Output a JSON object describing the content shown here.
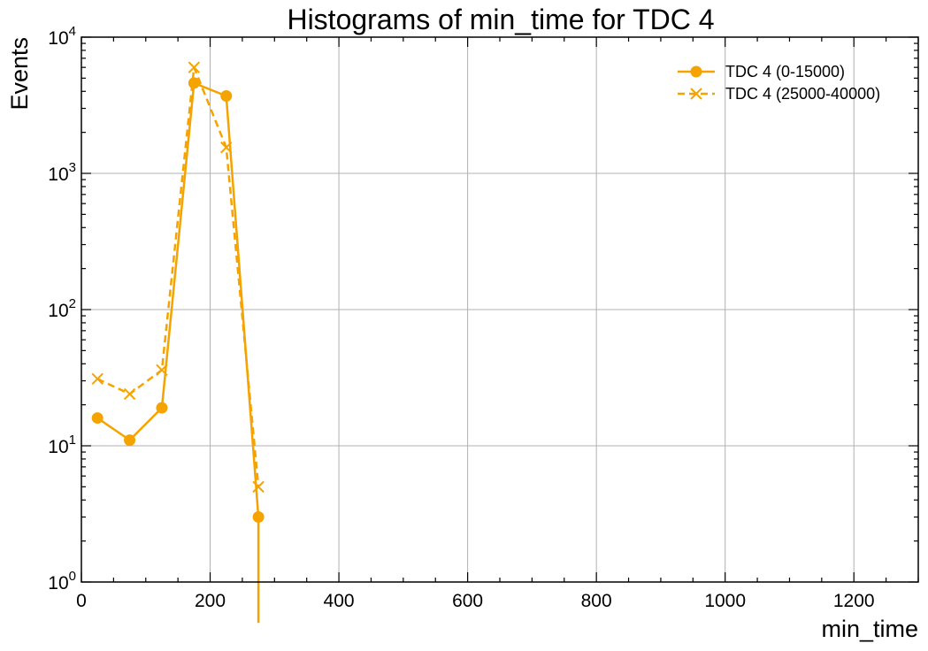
{
  "chart_data": {
    "type": "line",
    "title": "Histograms of min_time for TDC 4",
    "xlabel": "min_time",
    "ylabel": "Events",
    "xlim": [
      0,
      1300
    ],
    "ylim": [
      1,
      10000
    ],
    "yscale": "log",
    "grid": true,
    "legend_position": "top-right",
    "x_ticks": [
      {
        "value": 0,
        "label": "0"
      },
      {
        "value": 200,
        "label": "200"
      },
      {
        "value": 400,
        "label": "400"
      },
      {
        "value": 600,
        "label": "600"
      },
      {
        "value": 800,
        "label": "800"
      },
      {
        "value": 1000,
        "label": "1000"
      },
      {
        "value": 1200,
        "label": "1200"
      }
    ],
    "y_ticks": [
      {
        "value": 1,
        "base": "10",
        "exp": "0"
      },
      {
        "value": 10,
        "base": "10",
        "exp": "1"
      },
      {
        "value": 100,
        "base": "10",
        "exp": "2"
      },
      {
        "value": 1000,
        "base": "10",
        "exp": "3"
      },
      {
        "value": 10000,
        "base": "10",
        "exp": "4"
      }
    ],
    "series": [
      {
        "name": "TDC 4 (0-15000)",
        "color": "#f5a300",
        "line_style": "solid",
        "marker": "circle",
        "x": [
          25,
          75,
          125,
          175,
          225,
          275,
          275
        ],
        "y": [
          16,
          11,
          19,
          4600,
          3700,
          3,
          0.1
        ]
      },
      {
        "name": "TDC 4 (25000-40000)",
        "color": "#f5a300",
        "line_style": "dashed",
        "marker": "x",
        "x": [
          25,
          75,
          125,
          175,
          225,
          275
        ],
        "y": [
          31,
          24,
          36,
          6000,
          1550,
          5
        ]
      }
    ]
  }
}
